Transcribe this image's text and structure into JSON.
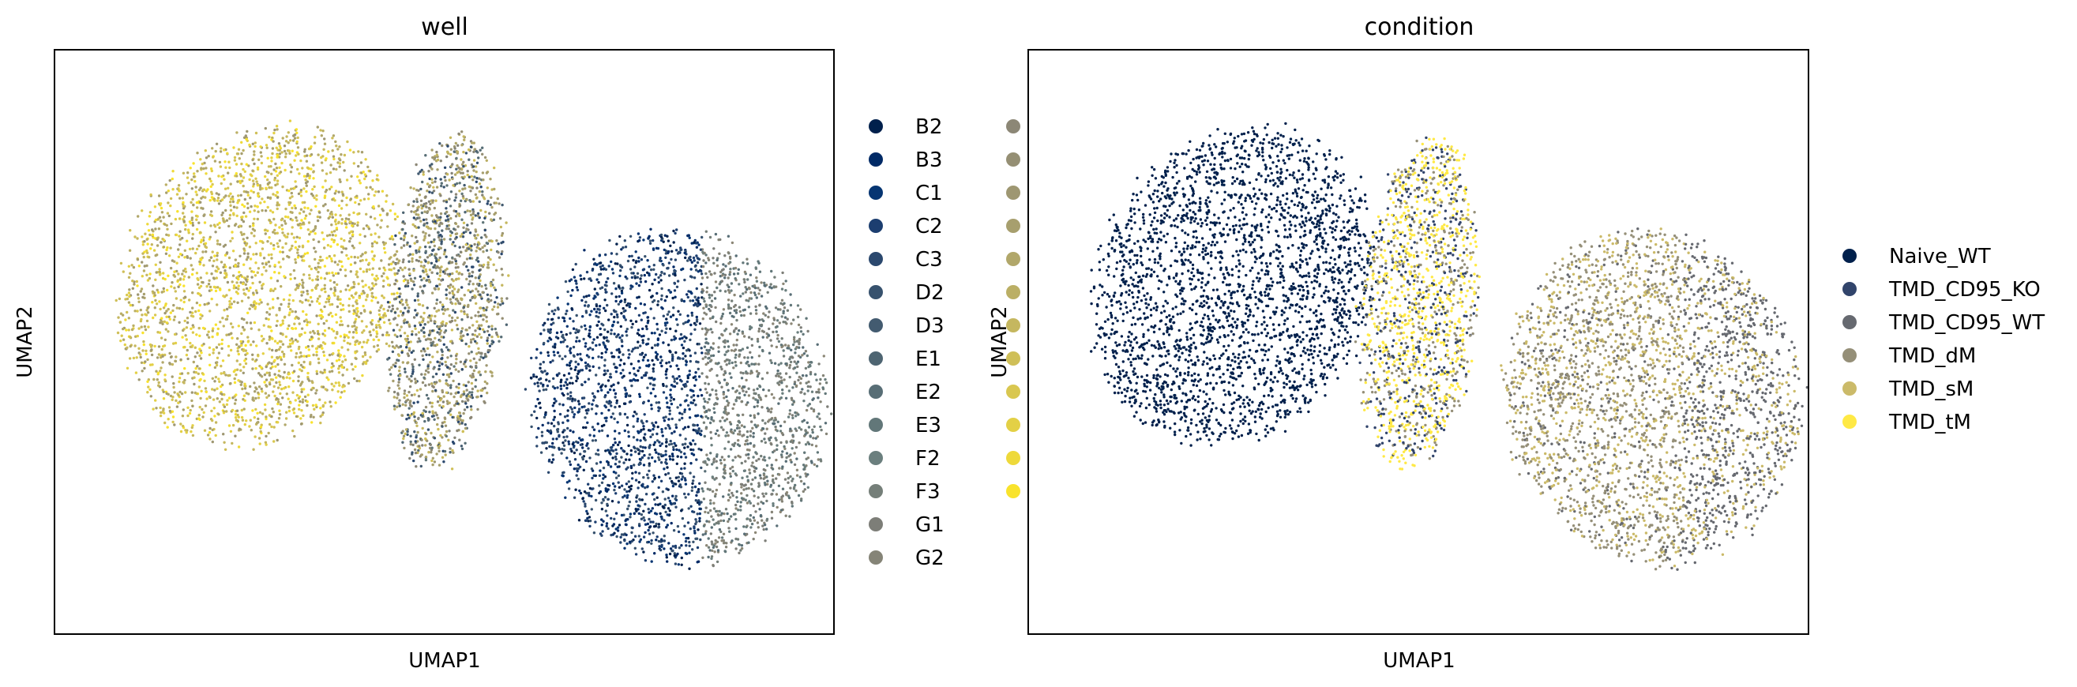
{
  "chart_data": [
    {
      "type": "scatter",
      "title": "well",
      "xlabel": "UMAP1",
      "ylabel": "UMAP2",
      "grid": false,
      "ticks": false,
      "legend_placement": "right, outside, two columns",
      "legend": [
        {
          "label": "B2",
          "color": "#00204c"
        },
        {
          "label": "B3",
          "color": "#002a66"
        },
        {
          "label": "C1",
          "color": "#063572"
        },
        {
          "label": "C2",
          "color": "#1c3e70"
        },
        {
          "label": "C3",
          "color": "#2b486e"
        },
        {
          "label": "D2",
          "color": "#37526e"
        },
        {
          "label": "D3",
          "color": "#435b70"
        },
        {
          "label": "E1",
          "color": "#4e6572"
        },
        {
          "label": "E2",
          "color": "#586e76"
        },
        {
          "label": "E3",
          "color": "#627779"
        },
        {
          "label": "F2",
          "color": "#6b7f7e"
        },
        {
          "label": "F3",
          "color": "#757f79"
        },
        {
          "label": "G1",
          "color": "#7d7e78"
        },
        {
          "label": "G2",
          "color": "#858477"
        },
        {
          "label": "",
          "color": "#8c8776"
        },
        {
          "label": "",
          "color": "#958f74"
        },
        {
          "label": "",
          "color": "#9e9772"
        },
        {
          "label": "",
          "color": "#a79f6e"
        },
        {
          "label": "",
          "color": "#b1a76a"
        },
        {
          "label": "",
          "color": "#bbaf65"
        },
        {
          "label": "",
          "color": "#c5b75f"
        },
        {
          "label": "",
          "color": "#cfbf58"
        },
        {
          "label": "",
          "color": "#d9c750"
        },
        {
          "label": "",
          "color": "#e3d046"
        },
        {
          "label": "",
          "color": "#eed93a"
        },
        {
          "label": "",
          "color": "#f9e32c"
        }
      ],
      "clusters": [
        {
          "region": "left blob",
          "center": [
            1.5,
            6.5
          ],
          "colors": [
            "yellow",
            "tan"
          ]
        },
        {
          "region": "middle band",
          "center": [
            4.8,
            6.5
          ],
          "colors": [
            "tan",
            "slate",
            "yellow"
          ]
        },
        {
          "region": "right blob",
          "center": [
            9.5,
            3.8
          ],
          "colors": [
            "navy",
            "gray"
          ]
        }
      ]
    },
    {
      "type": "scatter",
      "title": "condition",
      "xlabel": "UMAP1",
      "ylabel": "UMAP2",
      "grid": false,
      "ticks": false,
      "legend_placement": "right, outside",
      "legend": [
        {
          "label": "Naive_WT",
          "color": "#00204c"
        },
        {
          "label": "TMD_CD95_KO",
          "color": "#31446b"
        },
        {
          "label": "TMD_CD95_WT",
          "color": "#666970"
        },
        {
          "label": "TMD_dM",
          "color": "#958f78"
        },
        {
          "label": "TMD_sM",
          "color": "#cbba69"
        },
        {
          "label": "TMD_tM",
          "color": "#ffe945"
        }
      ],
      "clusters": [
        {
          "region": "left blob",
          "center": [
            1.5,
            6.5
          ],
          "colors": [
            "Naive_WT"
          ]
        },
        {
          "region": "middle band",
          "center": [
            4.8,
            6.5
          ],
          "colors": [
            "TMD_tM",
            "TMD_CD95_KO",
            "TMD_dM"
          ]
        },
        {
          "region": "right blob",
          "center": [
            9.5,
            3.8
          ],
          "colors": [
            "TMD_dM",
            "TMD_sM",
            "TMD_CD95_WT"
          ]
        }
      ]
    }
  ]
}
